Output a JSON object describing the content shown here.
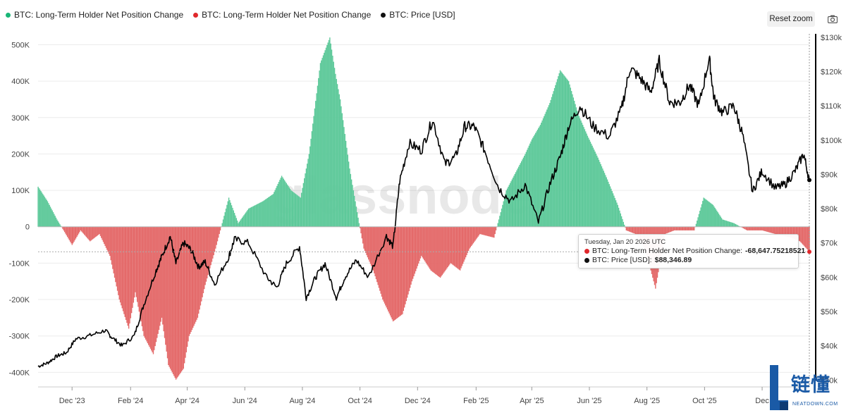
{
  "legend": [
    {
      "label": "BTC: Long-Term Holder Net Position Change",
      "color": "#19b677"
    },
    {
      "label": "BTC: Long-Term Holder Net Position Change",
      "color": "#e0282c"
    },
    {
      "label": "BTC: Price [USD]",
      "color": "#111111"
    }
  ],
  "toolbar": {
    "reset_label": "Reset zoom",
    "camera_icon": "camera-icon"
  },
  "watermark": "glassnode",
  "tooltip": {
    "date": "Tuesday, Jan 20 2026 UTC",
    "row1_label": "BTC: Long-Term Holder Net Position Change:",
    "row1_value": "-68,647.75218521",
    "row2_label": "BTC: Price [USD]:",
    "row2_value": "$88,346.89"
  },
  "logo": {
    "cn": "链懂",
    "url": "NEATDOWN.COM"
  },
  "colors": {
    "positive": "#5ec99a",
    "negative": "#e46a6a",
    "price": "#000000"
  },
  "chart_data": {
    "type": "bar",
    "x_ticks": [
      "Dec '23",
      "Feb '24",
      "Apr '24",
      "Jun '24",
      "Aug '24",
      "Oct '24",
      "Dec '24",
      "Feb '25",
      "Apr '25",
      "Jun '25",
      "Aug '25",
      "Oct '25",
      "Dec"
    ],
    "y_left_ticks": [
      "500K",
      "400K",
      "300K",
      "200K",
      "100K",
      "0",
      "-100K",
      "-200K",
      "-300K",
      "-400K"
    ],
    "y_right_ticks": [
      "$130k",
      "$120k",
      "$110k",
      "$100k",
      "$90k",
      "$80k",
      "$70k",
      "$60k",
      "$50k",
      "$40k",
      "$30k"
    ],
    "x_range": [
      "2023-10-26",
      "2026-01-20"
    ],
    "y_left_range": [
      -440000,
      530000
    ],
    "y_right_range": [
      28000,
      131000
    ],
    "grid": "horizontal",
    "legend_position": "top-left",
    "series": [
      {
        "axis": "left",
        "kind": "bars",
        "dates": [
          "2023-10-26",
          "2023-11-05",
          "2023-11-15",
          "2023-11-22",
          "2023-12-01",
          "2023-12-10",
          "2023-12-20",
          "2023-12-30",
          "2024-01-10",
          "2024-01-20",
          "2024-01-30",
          "2024-02-06",
          "2024-02-15",
          "2024-02-25",
          "2024-03-05",
          "2024-03-12",
          "2024-03-20",
          "2024-03-28",
          "2024-04-03",
          "2024-04-12",
          "2024-04-20",
          "2024-05-01",
          "2024-05-15",
          "2024-05-25",
          "2024-06-05",
          "2024-06-20",
          "2024-07-01",
          "2024-07-10",
          "2024-07-20",
          "2024-07-30",
          "2024-08-08",
          "2024-08-20",
          "2024-08-30",
          "2024-09-05",
          "2024-09-10",
          "2024-09-20",
          "2024-09-30",
          "2024-10-05",
          "2024-10-15",
          "2024-10-25",
          "2024-11-05",
          "2024-11-15",
          "2024-11-25",
          "2024-12-05",
          "2024-12-15",
          "2024-12-25",
          "2025-01-05",
          "2025-01-15",
          "2025-01-25",
          "2025-02-05",
          "2025-02-20",
          "2025-03-05",
          "2025-03-15",
          "2025-03-25",
          "2025-04-01",
          "2025-04-10",
          "2025-04-20",
          "2025-05-01",
          "2025-05-10",
          "2025-05-20",
          "2025-05-30",
          "2025-06-10",
          "2025-06-20",
          "2025-07-01",
          "2025-07-10",
          "2025-07-20",
          "2025-07-30",
          "2025-08-10",
          "2025-08-20",
          "2025-08-30",
          "2025-09-10",
          "2025-09-20",
          "2025-09-30",
          "2025-10-10",
          "2025-10-20",
          "2025-11-01",
          "2025-11-15",
          "2025-12-01",
          "2025-12-15",
          "2026-01-01",
          "2026-01-10",
          "2026-01-20"
        ],
        "values": [
          110000,
          70000,
          20000,
          -10000,
          -50000,
          -10000,
          -40000,
          -20000,
          -80000,
          -200000,
          -280000,
          -180000,
          -300000,
          -350000,
          -250000,
          -380000,
          -420000,
          -390000,
          -300000,
          -250000,
          -160000,
          -60000,
          80000,
          10000,
          50000,
          70000,
          90000,
          140000,
          100000,
          80000,
          200000,
          450000,
          520000,
          420000,
          350000,
          160000,
          10000,
          -60000,
          -120000,
          -200000,
          -260000,
          -240000,
          -150000,
          -80000,
          -120000,
          -140000,
          -100000,
          -120000,
          -60000,
          -20000,
          -30000,
          100000,
          150000,
          200000,
          240000,
          280000,
          340000,
          430000,
          400000,
          310000,
          250000,
          190000,
          130000,
          60000,
          -10000,
          -20000,
          -60000,
          -170000,
          -20000,
          -10000,
          -10000,
          -10000,
          80000,
          60000,
          20000,
          10000,
          -10000,
          -10000,
          -20000,
          -30000,
          -40000,
          -68647.75
        ]
      },
      {
        "axis": "right",
        "kind": "line",
        "name": "BTC: Price [USD]",
        "dates": [
          "2023-10-26",
          "2023-11-05",
          "2023-11-15",
          "2023-11-25",
          "2023-12-05",
          "2023-12-20",
          "2024-01-05",
          "2024-01-12",
          "2024-01-23",
          "2024-02-05",
          "2024-02-15",
          "2024-02-28",
          "2024-03-05",
          "2024-03-14",
          "2024-03-20",
          "2024-03-28",
          "2024-04-05",
          "2024-04-13",
          "2024-04-20",
          "2024-04-30",
          "2024-05-15",
          "2024-05-21",
          "2024-06-05",
          "2024-06-24",
          "2024-07-05",
          "2024-07-15",
          "2024-07-29",
          "2024-08-05",
          "2024-08-15",
          "2024-08-25",
          "2024-09-06",
          "2024-09-15",
          "2024-09-27",
          "2024-10-10",
          "2024-10-29",
          "2024-11-05",
          "2024-11-12",
          "2024-11-22",
          "2024-12-05",
          "2024-12-17",
          "2024-12-30",
          "2025-01-10",
          "2025-01-20",
          "2025-01-30",
          "2025-02-10",
          "2025-02-25",
          "2025-03-10",
          "2025-03-25",
          "2025-04-08",
          "2025-04-20",
          "2025-05-01",
          "2025-05-10",
          "2025-05-22",
          "2025-06-05",
          "2025-06-22",
          "2025-07-05",
          "2025-07-14",
          "2025-07-25",
          "2025-08-05",
          "2025-08-14",
          "2025-08-25",
          "2025-09-05",
          "2025-09-15",
          "2025-09-25",
          "2025-10-06",
          "2025-10-11",
          "2025-10-20",
          "2025-11-01",
          "2025-11-10",
          "2025-11-21",
          "2025-12-01",
          "2025-12-15",
          "2025-12-25",
          "2026-01-05",
          "2026-01-14",
          "2026-01-20"
        ],
        "values": [
          34000,
          35000,
          37000,
          38000,
          42000,
          43000,
          44500,
          42500,
          40000,
          43000,
          52000,
          62000,
          66000,
          72000,
          64000,
          70000,
          68000,
          63000,
          64500,
          58000,
          66000,
          71000,
          70000,
          60000,
          57000,
          64000,
          69000,
          54000,
          60000,
          64000,
          54000,
          60000,
          65000,
          60000,
          72000,
          69000,
          88000,
          99000,
          97000,
          106000,
          93000,
          95000,
          104000,
          104000,
          97000,
          86000,
          82000,
          87000,
          76000,
          87000,
          95000,
          104000,
          110000,
          104000,
          101000,
          109000,
          121000,
          118000,
          114000,
          123000,
          111000,
          111000,
          116000,
          110000,
          124000,
          112000,
          108000,
          110000,
          102000,
          85000,
          91000,
          86000,
          87000,
          91000,
          96000,
          88346.89
        ]
      }
    ]
  }
}
